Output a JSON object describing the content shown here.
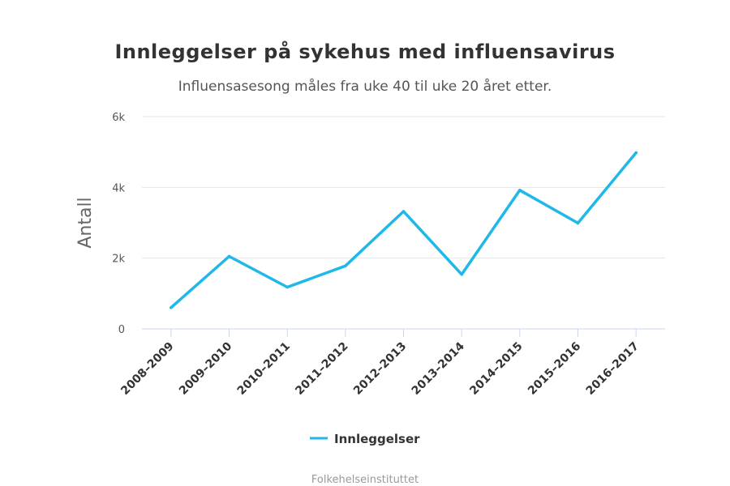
{
  "chart_data": {
    "type": "line",
    "title": "Innleggelser på sykehus med influensavirus",
    "subtitle": "Influensasesong måles fra uke 40 til uke 20 året etter.",
    "ylabel": "Antall",
    "xlabel": "",
    "categories": [
      "2008–2009",
      "2009–2010",
      "2010–2011",
      "2011–2012",
      "2012–2013",
      "2013–2014",
      "2014–2015",
      "2015–2016",
      "2016–2017"
    ],
    "series": [
      {
        "name": "Innleggelser",
        "values": [
          600,
          2050,
          1180,
          1780,
          3320,
          1540,
          3920,
          2990,
          4980
        ],
        "color": "#1fb8e8"
      }
    ],
    "ylim": [
      0,
      6000
    ],
    "yticks": [
      0,
      2000,
      4000,
      6000
    ],
    "ytick_labels": [
      "0",
      "2k",
      "4k",
      "6k"
    ],
    "grid": true,
    "legend_position": "bottom-center",
    "credit": "Folkehelseinstituttet"
  }
}
